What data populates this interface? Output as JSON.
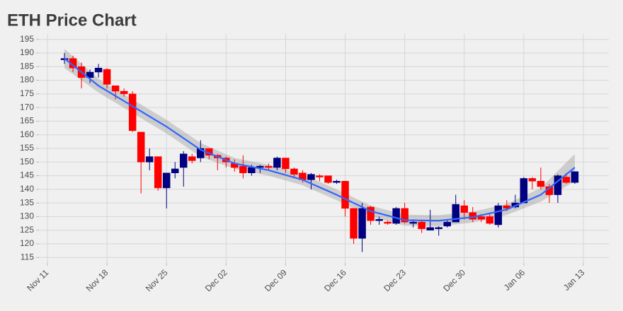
{
  "chart_data": {
    "type": "candlestick",
    "title": "ETH Price Chart",
    "x": [
      "Nov 13",
      "Nov 14",
      "Nov 15",
      "Nov 16",
      "Nov 17",
      "Nov 18",
      "Nov 19",
      "Nov 20",
      "Nov 21",
      "Nov 22",
      "Nov 23",
      "Nov 24",
      "Nov 25",
      "Nov 26",
      "Nov 27",
      "Nov 28",
      "Nov 29",
      "Nov 30",
      "Dec 01",
      "Dec 02",
      "Dec 03",
      "Dec 04",
      "Dec 05",
      "Dec 06",
      "Dec 07",
      "Dec 08",
      "Dec 09",
      "Dec 10",
      "Dec 11",
      "Dec 12",
      "Dec 13",
      "Dec 14",
      "Dec 15",
      "Dec 16",
      "Dec 17",
      "Dec 18",
      "Dec 19",
      "Dec 20",
      "Dec 21",
      "Dec 22",
      "Dec 23",
      "Dec 24",
      "Dec 25",
      "Dec 26",
      "Dec 27",
      "Dec 28",
      "Dec 29",
      "Dec 30",
      "Dec 31",
      "Jan 01",
      "Jan 02",
      "Jan 03",
      "Jan 04",
      "Jan 05",
      "Jan 06",
      "Jan 07",
      "Jan 08",
      "Jan 09",
      "Jan 10",
      "Jan 11",
      "Jan 12"
    ],
    "open": [
      187.5,
      188,
      185,
      181,
      183,
      184,
      178,
      176,
      175,
      161,
      150,
      152,
      140.5,
      146,
      148,
      152,
      151.5,
      155,
      152.5,
      151.5,
      149.5,
      148.5,
      146,
      148,
      148.5,
      148,
      151.5,
      147.5,
      146,
      143.5,
      145,
      145,
      142.5,
      143,
      133,
      122,
      133.5,
      128.5,
      128,
      127.5,
      133,
      127.5,
      128,
      125,
      125.5,
      126.5,
      128,
      134,
      131.5,
      130,
      130,
      127,
      134,
      133.5,
      135,
      144,
      143,
      141,
      138,
      144.5,
      142.5
    ],
    "high": [
      190,
      189,
      186.5,
      184,
      186,
      184.5,
      178,
      177,
      176,
      161,
      155,
      152,
      146,
      150,
      154,
      153,
      158,
      155,
      153,
      152,
      151,
      152.5,
      149,
      149,
      149.5,
      152,
      151.5,
      148,
      147,
      146,
      145.5,
      145,
      143.5,
      143,
      133,
      135,
      134,
      130,
      128.5,
      133.5,
      135,
      129,
      128.5,
      132.5,
      126.5,
      129,
      138,
      136,
      133.5,
      131,
      131,
      135,
      136,
      138,
      144.5,
      144.5,
      148,
      142,
      145.5,
      146,
      146.5
    ],
    "low": [
      186,
      183,
      177,
      179,
      181,
      177,
      173,
      174,
      161,
      138.5,
      147,
      139.5,
      133,
      144,
      141,
      149.5,
      150,
      151,
      147,
      148,
      146.5,
      144,
      145,
      146,
      147,
      147,
      146,
      144,
      142.5,
      140,
      143,
      142,
      142,
      130,
      120,
      117,
      127,
      127,
      127,
      127,
      127.5,
      126,
      124,
      125,
      123,
      126,
      128,
      129,
      128,
      128,
      127,
      126,
      132,
      133,
      135,
      140,
      140,
      135,
      135,
      142,
      142
    ],
    "close": [
      188,
      184.5,
      181,
      183,
      184.5,
      178.5,
      176,
      175,
      161.5,
      150,
      152,
      140.5,
      146,
      147.5,
      153,
      150.5,
      155,
      152.5,
      151.5,
      150,
      148,
      146,
      148,
      148.5,
      148,
      151.5,
      147.5,
      145.5,
      143.5,
      145.5,
      144.5,
      142.5,
      143,
      133,
      122,
      133,
      128.5,
      129,
      127.5,
      133,
      128,
      128,
      125.5,
      126,
      126,
      128,
      134.5,
      131.5,
      129,
      129,
      127.5,
      134,
      133,
      135,
      144,
      143,
      141,
      138,
      145,
      142.5,
      146.5
    ],
    "up_color": "#000080",
    "down_color": "#ff0000",
    "smooth": {
      "color": "#3366ff",
      "band_color": "#999999",
      "x": [
        "Nov 13",
        "Nov 17",
        "Nov 21",
        "Nov 25",
        "Nov 29",
        "Dec 03",
        "Dec 07",
        "Dec 11",
        "Dec 15",
        "Dec 19",
        "Dec 23",
        "Dec 27",
        "Dec 31",
        "Jan 04",
        "Jan 08",
        "Jan 12"
      ],
      "values": [
        188,
        178,
        170.5,
        163,
        154.5,
        149.5,
        147,
        143.5,
        138,
        132,
        128.7,
        128.5,
        129.8,
        132.6,
        138,
        148
      ],
      "ci_low": [
        184.5,
        175.5,
        168,
        160.5,
        152,
        147.5,
        145,
        141.5,
        136,
        130,
        126.7,
        126.5,
        127.8,
        130.6,
        135.5,
        143
      ],
      "ci_high": [
        191.5,
        180.5,
        173,
        165.5,
        157,
        151.5,
        149,
        145.5,
        140,
        134,
        130.7,
        130.5,
        131.8,
        134.6,
        140.5,
        153
      ]
    },
    "xlim": [
      "Nov 10",
      "Jan 16"
    ],
    "xticks": [
      "Nov 11",
      "Nov 18",
      "Nov 25",
      "Dec 02",
      "Dec 09",
      "Dec 16",
      "Dec 23",
      "Dec 30",
      "Jan 06",
      "Jan 13"
    ],
    "ylim": [
      113,
      197
    ],
    "yticks": [
      115,
      120,
      125,
      130,
      135,
      140,
      145,
      150,
      155,
      160,
      165,
      170,
      175,
      180,
      185,
      190,
      195
    ],
    "grid": true
  }
}
